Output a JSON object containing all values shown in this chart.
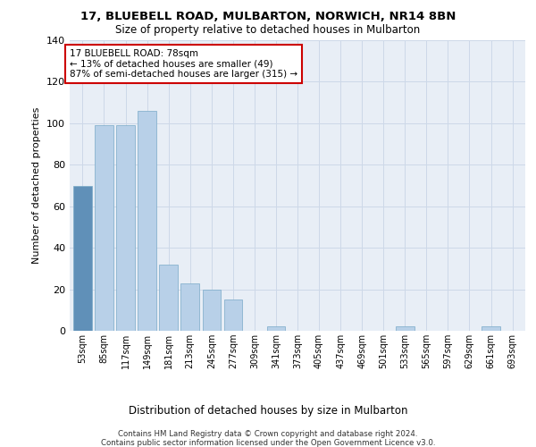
{
  "title1": "17, BLUEBELL ROAD, MULBARTON, NORWICH, NR14 8BN",
  "title2": "Size of property relative to detached houses in Mulbarton",
  "xlabel": "Distribution of detached houses by size in Mulbarton",
  "ylabel": "Number of detached properties",
  "bar_color": "#b8d0e8",
  "bar_edge_color": "#7aaac8",
  "categories": [
    "53sqm",
    "85sqm",
    "117sqm",
    "149sqm",
    "181sqm",
    "213sqm",
    "245sqm",
    "277sqm",
    "309sqm",
    "341sqm",
    "373sqm",
    "405sqm",
    "437sqm",
    "469sqm",
    "501sqm",
    "533sqm",
    "565sqm",
    "597sqm",
    "629sqm",
    "661sqm",
    "693sqm"
  ],
  "values": [
    70,
    99,
    99,
    106,
    32,
    23,
    20,
    15,
    0,
    2,
    0,
    0,
    0,
    0,
    0,
    2,
    0,
    0,
    0,
    2,
    0
  ],
  "ylim": [
    0,
    140
  ],
  "yticks": [
    0,
    20,
    40,
    60,
    80,
    100,
    120,
    140
  ],
  "annotation_box_text": "17 BLUEBELL ROAD: 78sqm\n← 13% of detached houses are smaller (49)\n87% of semi-detached houses are larger (315) →",
  "annotation_box_color": "#ffffff",
  "annotation_box_edge_color": "#cc0000",
  "footer1": "Contains HM Land Registry data © Crown copyright and database right 2024.",
  "footer2": "Contains public sector information licensed under the Open Government Licence v3.0.",
  "grid_color": "#cdd8e8",
  "bg_color": "#e8eef6",
  "highlight_bar_index": 0,
  "highlight_bar_color": "#6090b8"
}
